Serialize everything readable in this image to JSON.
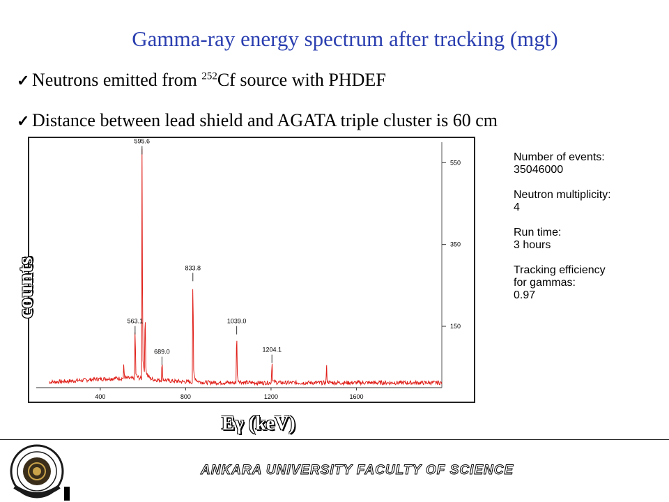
{
  "title": "Gamma-ray energy spectrum after tracking (mgt)",
  "bullets": [
    {
      "pre": "Neutrons emitted from ",
      "sup": "252",
      "post": "Cf source with PHDEF"
    },
    {
      "pre": "Distance between lead shield and AGATA triple cluster is 60 cm",
      "sup": "",
      "post": ""
    }
  ],
  "info": {
    "events_label": "Number of events:",
    "events_value": "35046000",
    "mult_label": "Neutron multiplicity:",
    "mult_value": "4",
    "runtime_label": "Run time:",
    "runtime_value": "3 hours",
    "eff_label_1": "Tracking efficiency",
    "eff_label_2": "for gammas:",
    "eff_value": "0.97"
  },
  "footer": "ANKARA UNIVERSITY FACULTY OF SCIENCE",
  "colors": {
    "title": "#2b3fb0",
    "series": "#e0201a"
  },
  "chart_data": {
    "type": "line",
    "xlabel": "Eγ (keV)",
    "ylabel": "counts",
    "xlim": [
      100,
      2000
    ],
    "ylim": [
      0,
      600
    ],
    "x_ticks": [
      400,
      800,
      1200,
      1600
    ],
    "y_ticks": [
      150,
      350,
      550
    ],
    "baseline": 12,
    "peaks": [
      {
        "x": 563.1,
        "y": 120,
        "label": "563.1"
      },
      {
        "x": 595.6,
        "y": 560,
        "label": "595.6"
      },
      {
        "x": 689.0,
        "y": 45,
        "label": "689.0"
      },
      {
        "x": 833.8,
        "y": 250,
        "label": "833.8"
      },
      {
        "x": 1039.0,
        "y": 120,
        "label": "1039.0"
      },
      {
        "x": 1204.1,
        "y": 50,
        "label": "1204.1"
      }
    ],
    "minor_peaks": [
      {
        "x": 510,
        "y": 30
      },
      {
        "x": 610,
        "y": 140
      },
      {
        "x": 1460,
        "y": 35
      }
    ]
  }
}
